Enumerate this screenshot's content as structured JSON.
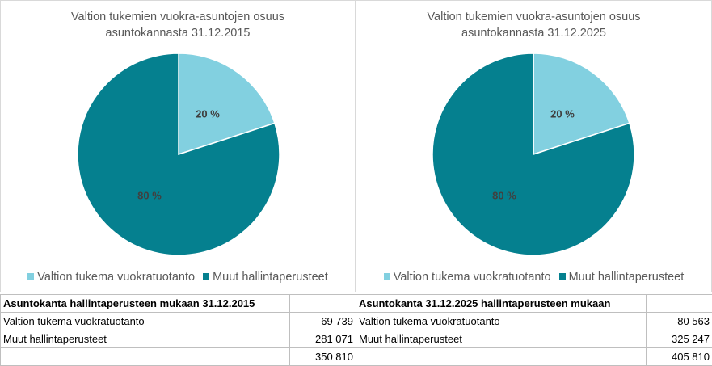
{
  "colors": {
    "light": "#82d0e0",
    "dark": "#05808f"
  },
  "chart_data": [
    {
      "type": "pie",
      "title": "Valtion tukemien vuokra-asuntojen osuus asuntokannasta 31.12.2015",
      "title_lines": [
        "Valtion tukemien vuokra-asuntojen osuus",
        "asuntokannasta 31.12.2015"
      ],
      "categories": [
        "Valtion tukema vuokratuotanto",
        "Muut hallintaperusteet"
      ],
      "values": [
        20,
        80
      ],
      "labels": [
        "20 %",
        "80 %"
      ],
      "colors": [
        "#82d0e0",
        "#05808f"
      ],
      "legend_position": "bottom"
    },
    {
      "type": "pie",
      "title": "Valtion tukemien vuokra-asuntojen osuus asuntokannasta 31.12.2025",
      "title_lines": [
        "Valtion tukemien vuokra-asuntojen osuus",
        "asuntokannasta 31.12.2025"
      ],
      "categories": [
        "Valtion tukema vuokratuotanto",
        "Muut hallintaperusteet"
      ],
      "values": [
        20,
        80
      ],
      "labels": [
        "20 %",
        "80 %"
      ],
      "colors": [
        "#82d0e0",
        "#05808f"
      ],
      "legend_position": "bottom"
    }
  ],
  "tables": [
    {
      "header": "Asuntokanta hallintaperusteen mukaan 31.12.2015",
      "rows": [
        {
          "label": "Valtion tukema vuokratuotanto",
          "value": "69 739"
        },
        {
          "label": "Muut hallintaperusteet",
          "value": "281 071"
        },
        {
          "label": "",
          "value": "350 810"
        }
      ]
    },
    {
      "header": "Asuntokanta 31.12.2025 hallintaperusteen mukaan",
      "rows": [
        {
          "label": "Valtion tukema vuokratuotanto",
          "value": "80 563"
        },
        {
          "label": "Muut hallintaperusteet",
          "value": "325 247"
        },
        {
          "label": "",
          "value": "405 810"
        }
      ]
    }
  ]
}
